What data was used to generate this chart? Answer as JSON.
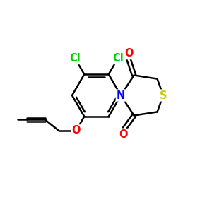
{
  "background_color": "#ffffff",
  "atom_colors": {
    "C": "#000000",
    "N": "#0000ff",
    "O": "#ff0000",
    "S": "#cccc00",
    "Cl": "#00cc00"
  },
  "bond_color": "#000000",
  "bond_width": 1.8,
  "figsize": [
    3.0,
    3.0
  ],
  "dpi": 100,
  "xlim": [
    0,
    10
  ],
  "ylim": [
    0,
    10
  ]
}
